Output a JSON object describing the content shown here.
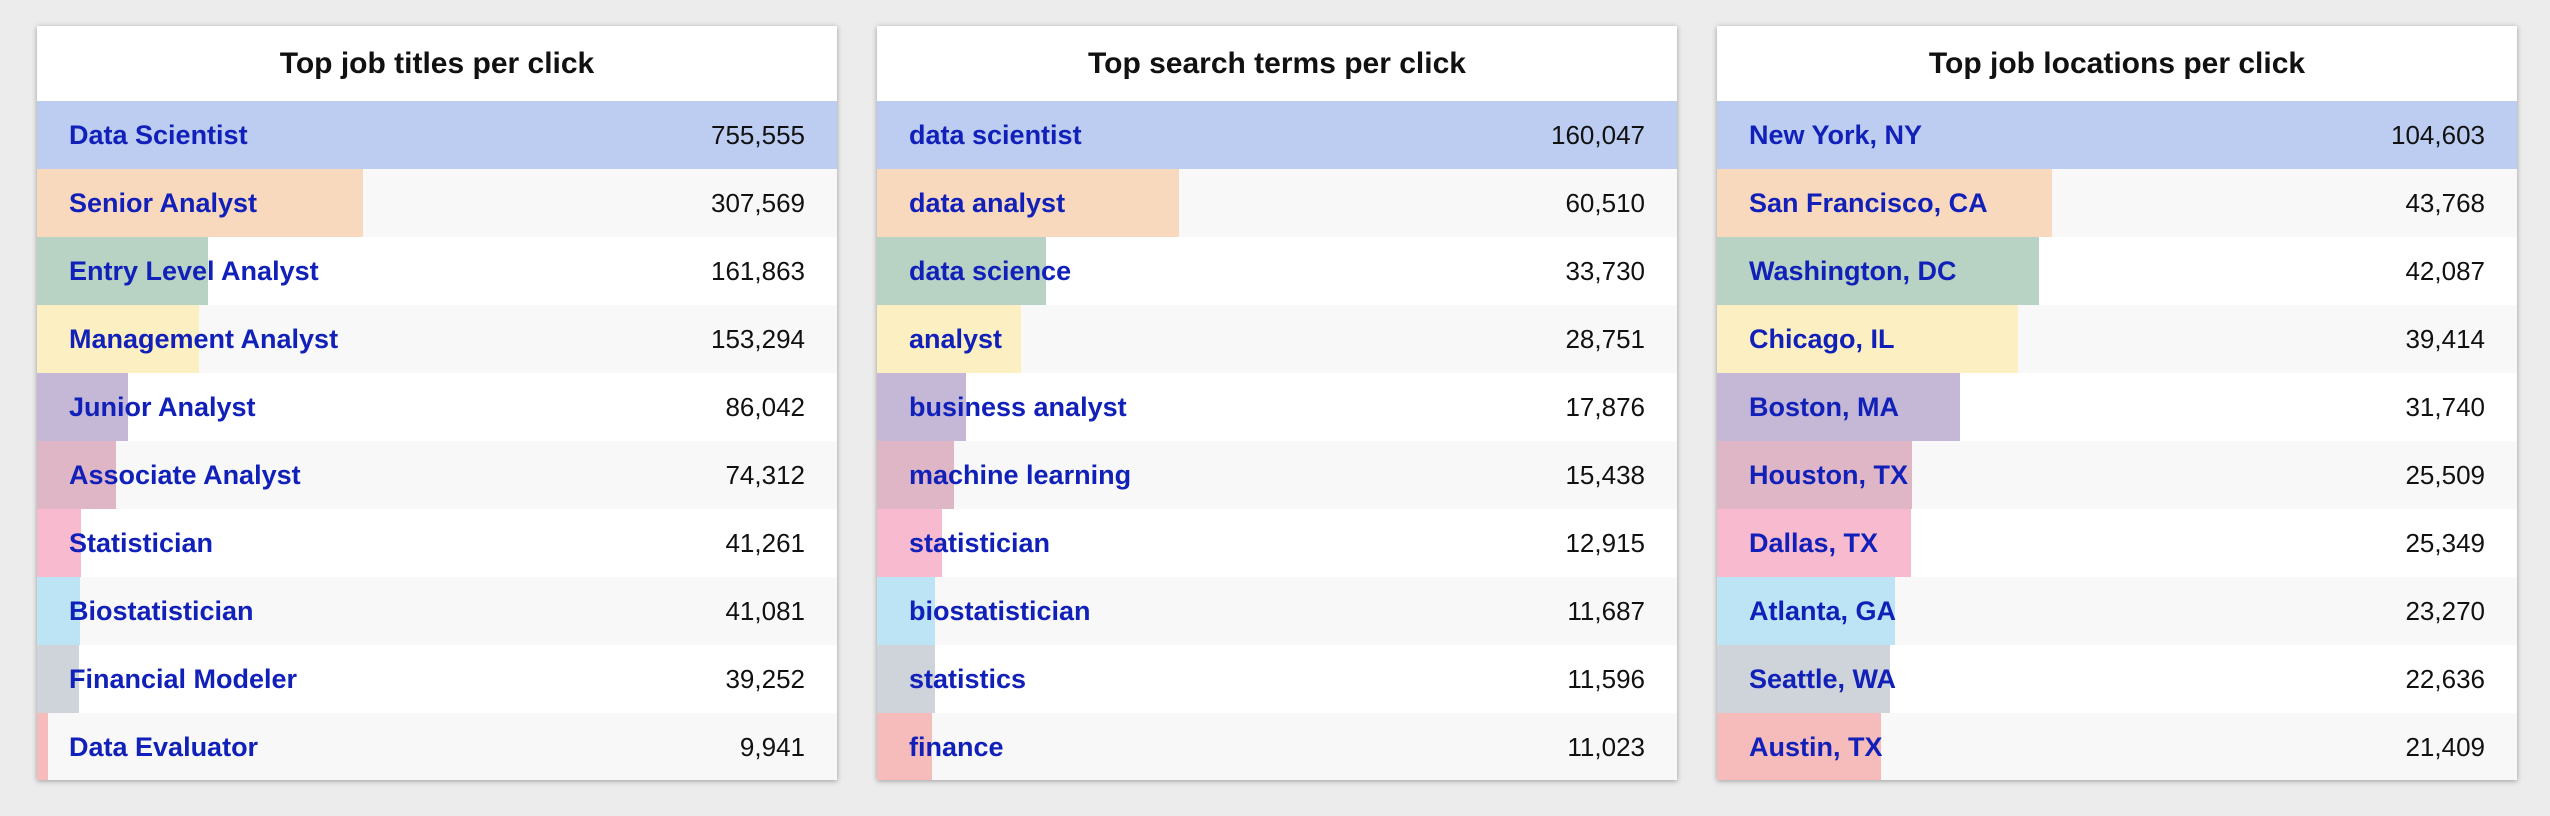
{
  "chart_data": [
    {
      "type": "bar",
      "title": "Top job titles per click",
      "categories": [
        "Data Scientist",
        "Senior Analyst",
        "Entry Level Analyst",
        "Management Analyst",
        "Junior Analyst",
        "Associate Analyst",
        "Statistician",
        "Biostatistician",
        "Financial Modeler",
        "Data Evaluator"
      ],
      "values": [
        755555,
        307569,
        161863,
        153294,
        86042,
        74312,
        41261,
        41081,
        39252,
        9941
      ],
      "value_labels": [
        "755,555",
        "307,569",
        "161,863",
        "153,294",
        "86,042",
        "74,312",
        "41,261",
        "41,081",
        "39,252",
        "9,941"
      ],
      "orientation": "horizontal",
      "grid": false
    },
    {
      "type": "bar",
      "title": "Top search terms per click",
      "categories": [
        "data scientist",
        "data analyst",
        "data science",
        "analyst",
        "business analyst",
        "machine learning",
        "statistician",
        "biostatistician",
        "statistics",
        "finance"
      ],
      "values": [
        160047,
        60510,
        33730,
        28751,
        17876,
        15438,
        12915,
        11687,
        11596,
        11023
      ],
      "value_labels": [
        "160,047",
        "60,510",
        "33,730",
        "28,751",
        "17,876",
        "15,438",
        "12,915",
        "11,687",
        "11,596",
        "11,023"
      ],
      "orientation": "horizontal",
      "grid": false
    },
    {
      "type": "bar",
      "title": "Top job locations per click",
      "categories": [
        "New York, NY",
        "San Francisco, CA",
        "Washington, DC",
        "Chicago, IL",
        "Boston, MA",
        "Houston, TX",
        "Dallas, TX",
        "Atlanta, GA",
        "Seattle, WA",
        "Austin, TX"
      ],
      "values": [
        104603,
        43768,
        42087,
        39414,
        31740,
        25509,
        25349,
        23270,
        22636,
        21409
      ],
      "value_labels": [
        "104,603",
        "43,768",
        "42,087",
        "39,414",
        "31,740",
        "25,509",
        "25,349",
        "23,270",
        "22,636",
        "21,409"
      ],
      "orientation": "horizontal",
      "grid": false
    }
  ],
  "colors": {
    "bars": [
      "#bdcdf2",
      "#f8d9bd",
      "#b8d3c3",
      "#fcefc2",
      "#c4b8d6",
      "#dfb6c6",
      "#f7bace",
      "#bde4f4",
      "#cfd3da",
      "#f6bcbc"
    ],
    "label_text": "#1020b8",
    "value_text": "#111111",
    "panel_background": "#ffffff",
    "page_background": "#ececec"
  }
}
